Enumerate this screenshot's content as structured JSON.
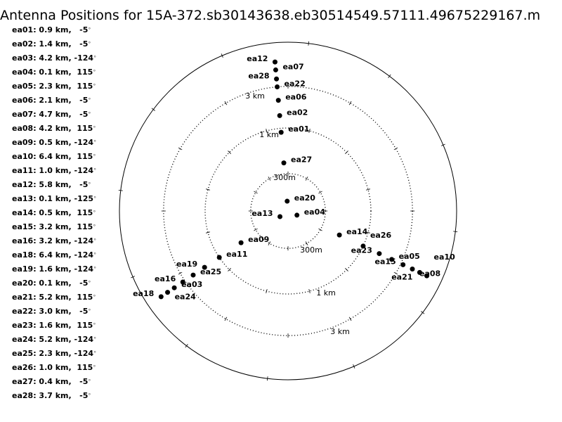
{
  "chart_data": {
    "type": "scatter",
    "projection": "polar",
    "radial_scale": "log",
    "angle_reference": "north, clockwise, degrees",
    "title": "Antenna Positions for 15A-372.sb30143638.eb30514549.57111.49675229167.m",
    "rings": [
      {
        "value_km": 0.3,
        "label": "300m"
      },
      {
        "value_km": 1,
        "label": "1 km"
      },
      {
        "value_km": 3,
        "label": "3 km"
      }
    ],
    "antennas": [
      {
        "name": "ea01",
        "distance_km": 0.9,
        "angle_deg": -5,
        "legend": "ea01: 0.9 km,   -5"
      },
      {
        "name": "ea02",
        "distance_km": 1.4,
        "angle_deg": -5,
        "legend": "ea02: 1.4 km,   -5"
      },
      {
        "name": "ea03",
        "distance_km": 4.2,
        "angle_deg": -124,
        "legend": "ea03: 4.2 km, -124"
      },
      {
        "name": "ea04",
        "distance_km": 0.1,
        "angle_deg": 115,
        "legend": "ea04: 0.1 km,  115"
      },
      {
        "name": "ea05",
        "distance_km": 2.3,
        "angle_deg": 115,
        "legend": "ea05: 2.3 km,  115"
      },
      {
        "name": "ea06",
        "distance_km": 2.1,
        "angle_deg": -5,
        "legend": "ea06: 2.1 km,   -5"
      },
      {
        "name": "ea07",
        "distance_km": 4.7,
        "angle_deg": -5,
        "legend": "ea07: 4.7 km,   -5"
      },
      {
        "name": "ea08",
        "distance_km": 4.2,
        "angle_deg": 115,
        "legend": "ea08: 4.2 km,  115"
      },
      {
        "name": "ea09",
        "distance_km": 0.5,
        "angle_deg": -124,
        "legend": "ea09: 0.5 km, -124"
      },
      {
        "name": "ea10",
        "distance_km": 6.4,
        "angle_deg": 115,
        "legend": "ea10: 6.4 km,  115"
      },
      {
        "name": "ea11",
        "distance_km": 1.0,
        "angle_deg": -124,
        "legend": "ea11: 1.0 km, -124"
      },
      {
        "name": "ea12",
        "distance_km": 5.8,
        "angle_deg": -5,
        "legend": "ea12: 5.8 km,   -5"
      },
      {
        "name": "ea13",
        "distance_km": 0.1,
        "angle_deg": -125,
        "legend": "ea13: 0.1 km, -125"
      },
      {
        "name": "ea14",
        "distance_km": 0.5,
        "angle_deg": 115,
        "legend": "ea14: 0.5 km,  115"
      },
      {
        "name": "ea15",
        "distance_km": 3.2,
        "angle_deg": 115,
        "legend": "ea15: 3.2 km,  115"
      },
      {
        "name": "ea16",
        "distance_km": 3.2,
        "angle_deg": -124,
        "legend": "ea16: 3.2 km, -124"
      },
      {
        "name": "ea18",
        "distance_km": 6.4,
        "angle_deg": -124,
        "legend": "ea18: 6.4 km, -124"
      },
      {
        "name": "ea19",
        "distance_km": 1.6,
        "angle_deg": -124,
        "legend": "ea19: 1.6 km, -124"
      },
      {
        "name": "ea20",
        "distance_km": 0.1,
        "angle_deg": -5,
        "legend": "ea20: 0.1 km,   -5"
      },
      {
        "name": "ea21",
        "distance_km": 5.2,
        "angle_deg": 115,
        "legend": "ea21: 5.2 km,  115"
      },
      {
        "name": "ea22",
        "distance_km": 3.0,
        "angle_deg": -5,
        "legend": "ea22: 3.0 km,   -5"
      },
      {
        "name": "ea23",
        "distance_km": 1.6,
        "angle_deg": 115,
        "legend": "ea23: 1.6 km,  115"
      },
      {
        "name": "ea24",
        "distance_km": 5.2,
        "angle_deg": -124,
        "legend": "ea24: 5.2 km, -124"
      },
      {
        "name": "ea25",
        "distance_km": 2.3,
        "angle_deg": -124,
        "legend": "ea25: 2.3 km, -124"
      },
      {
        "name": "ea26",
        "distance_km": 1.0,
        "angle_deg": 115,
        "legend": "ea26: 1.0 km,  115"
      },
      {
        "name": "ea27",
        "distance_km": 0.4,
        "angle_deg": -5,
        "legend": "ea27: 0.4 km,   -5"
      },
      {
        "name": "ea28",
        "distance_km": 3.7,
        "angle_deg": -5,
        "legend": "ea28: 3.7 km,   -5"
      }
    ],
    "degree_symbol": "°",
    "colors": {
      "points": "#000000",
      "rings": "#000000"
    }
  }
}
